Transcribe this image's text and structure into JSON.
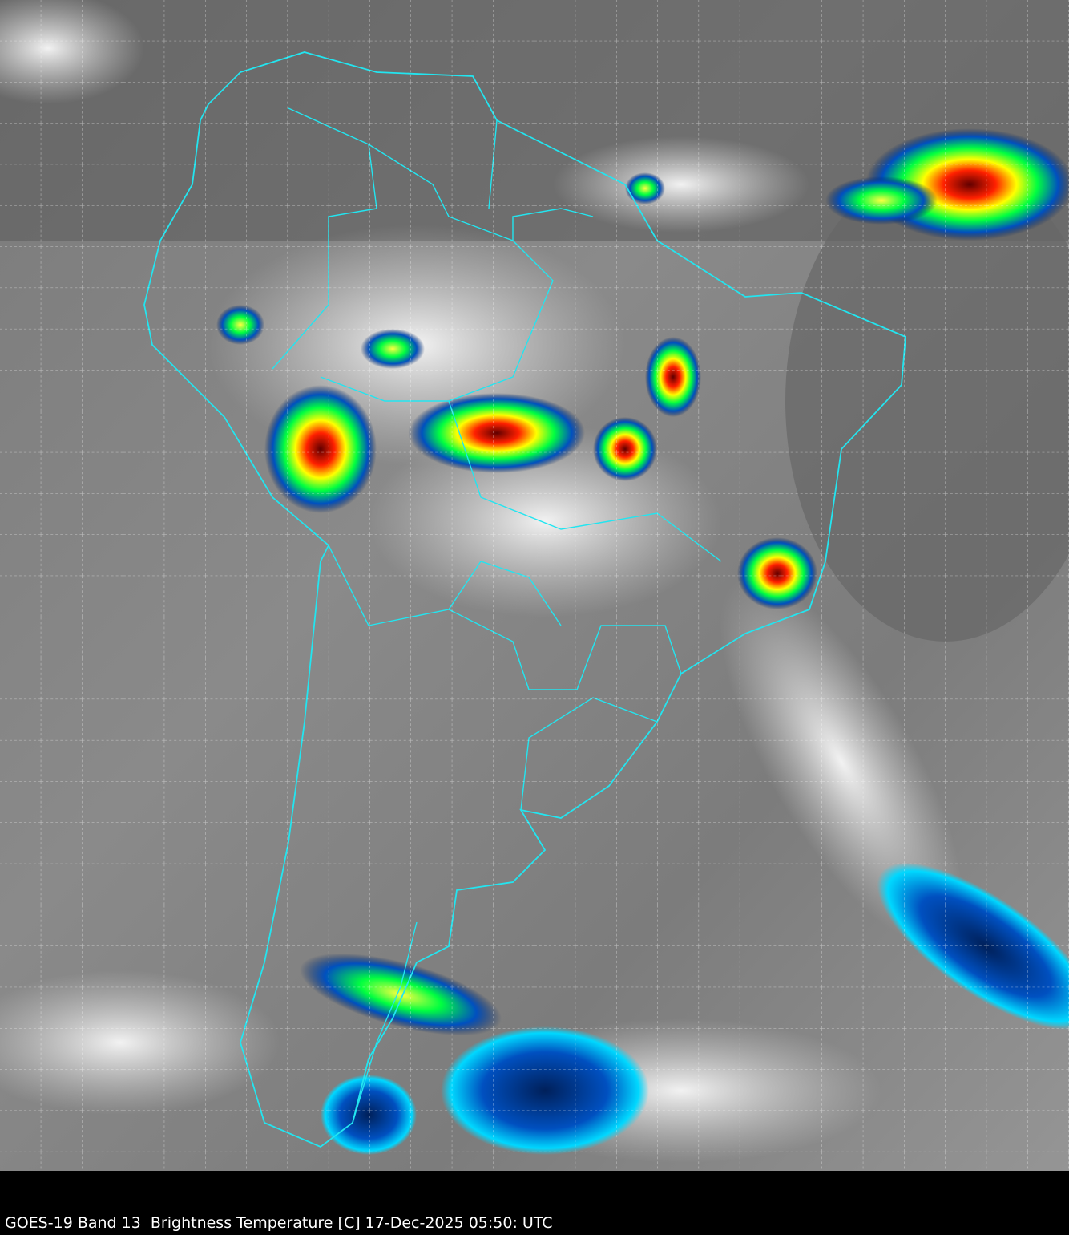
{
  "caption": "GOES-19 Band 13  Brightness Temperature [C] 17-Dec-2025 05:50: UTC",
  "colors": {
    "background": "#000000",
    "coastline": "#22e5f0",
    "gridlines": "#ffffff",
    "cold_cloud_scale": [
      "#00d8ff",
      "#0050c0",
      "#00205a",
      "#00ff40",
      "#ffff00",
      "#ff2000",
      "#600000"
    ]
  },
  "map": {
    "region": "South America",
    "gridlines": true,
    "gridline_style": "dashed"
  }
}
